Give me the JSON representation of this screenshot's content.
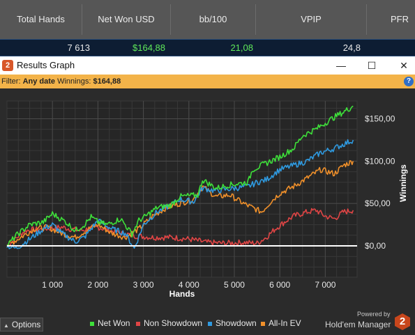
{
  "stats": {
    "headers": [
      "Total Hands",
      "Net Won USD",
      "bb/100",
      "VPIP",
      "PFR"
    ],
    "values": {
      "total_hands": "7 613",
      "net_won": "$164,88",
      "bb100": "21,08",
      "vpip": "24,8"
    }
  },
  "window": {
    "title": "Results Graph",
    "minimize": "—",
    "maximize": "☐",
    "close": "✕",
    "logo": "2"
  },
  "filter": {
    "label": "Filter:",
    "date": "Any date",
    "winnings_label": "Winnings:",
    "winnings_value": "$164,88",
    "help": "?"
  },
  "chart_data": {
    "type": "line",
    "title": "",
    "xlabel": "Hands",
    "ylabel": "Winnings",
    "xlim": [
      0,
      7700
    ],
    "ylim": [
      -37,
      171
    ],
    "x_ticks": [
      1000,
      2000,
      3000,
      4000,
      5000,
      6000,
      7000
    ],
    "x_tick_labels": [
      "1 000",
      "2 000",
      "3 000",
      "4 000",
      "5 000",
      "6 000",
      "7 000"
    ],
    "y_ticks": [
      0,
      50,
      100,
      150
    ],
    "y_tick_labels": [
      "$0,00",
      "$50,00",
      "$100,00",
      "$150,00"
    ],
    "grid": true,
    "legend_position": "bottom",
    "series": [
      {
        "name": "Net Won",
        "color": "#3ee03a",
        "x": [
          0,
          200,
          500,
          800,
          1000,
          1300,
          1500,
          1700,
          1850,
          2000,
          2200,
          2500,
          2750,
          2900,
          3000,
          3300,
          3600,
          3800,
          4200,
          4300,
          4600,
          4900,
          5300,
          5400,
          5600,
          6000,
          6300,
          6500,
          6800,
          7000,
          7200,
          7400,
          7613
        ],
        "y": [
          0,
          12,
          25,
          28,
          38,
          28,
          18,
          25,
          34,
          28,
          25,
          32,
          14,
          30,
          33,
          45,
          48,
          58,
          60,
          78,
          68,
          72,
          75,
          90,
          95,
          105,
          115,
          130,
          138,
          145,
          152,
          158,
          165
        ]
      },
      {
        "name": "Non Showdown",
        "color": "#e04545",
        "x": [
          0,
          400,
          800,
          1200,
          1600,
          2000,
          2400,
          2800,
          3200,
          3600,
          4000,
          4400,
          4800,
          5200,
          5500,
          5700,
          5900,
          6100,
          6300,
          6600,
          6800,
          7000,
          7200,
          7400,
          7613
        ],
        "y": [
          0,
          18,
          20,
          22,
          18,
          22,
          16,
          12,
          10,
          10,
          8,
          4,
          3,
          4,
          3,
          10,
          20,
          28,
          35,
          40,
          42,
          35,
          32,
          40,
          42
        ]
      },
      {
        "name": "Showdown",
        "color": "#2f9ae0",
        "x": [
          0,
          200,
          500,
          800,
          1000,
          1200,
          1500,
          1700,
          1850,
          2000,
          2300,
          2600,
          2800,
          3000,
          3300,
          3600,
          3800,
          4100,
          4300,
          4600,
          5000,
          5300,
          5500,
          5700,
          6000,
          6300,
          6600,
          6900,
          7200,
          7400,
          7613
        ],
        "y": [
          0,
          -3,
          8,
          20,
          25,
          15,
          5,
          10,
          20,
          30,
          20,
          15,
          -3,
          25,
          40,
          48,
          55,
          52,
          68,
          65,
          68,
          70,
          75,
          78,
          90,
          95,
          100,
          110,
          115,
          120,
          125
        ]
      },
      {
        "name": "All-In EV",
        "color": "#f0902a",
        "x": [
          0,
          300,
          600,
          900,
          1200,
          1500,
          1800,
          2000,
          2300,
          2600,
          2900,
          3200,
          3500,
          3800,
          4100,
          4300,
          4600,
          4900,
          5200,
          5400,
          5600,
          5800,
          6000,
          6300,
          6600,
          6900,
          7200,
          7400,
          7613
        ],
        "y": [
          0,
          10,
          20,
          22,
          15,
          10,
          20,
          25,
          15,
          10,
          20,
          35,
          45,
          50,
          55,
          70,
          58,
          60,
          50,
          45,
          40,
          52,
          62,
          70,
          80,
          90,
          85,
          95,
          100
        ]
      }
    ]
  },
  "options": {
    "label": "Options",
    "arrow": "▲"
  },
  "branding": {
    "powered_by": "Powered by",
    "product": "Hold'em Manager",
    "logo": "2"
  }
}
